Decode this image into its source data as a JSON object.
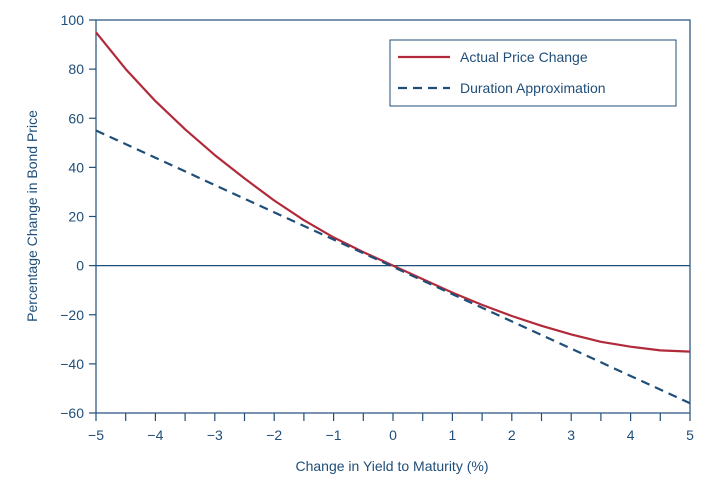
{
  "chart_data": {
    "type": "line",
    "xlabel": "Change in Yield to Maturity (%)",
    "ylabel": "Percentage Change in Bond Price",
    "xlim": [
      -5,
      5
    ],
    "ylim": [
      -60,
      100
    ],
    "xticks": [
      -5,
      -4,
      -3,
      -2,
      -1,
      0,
      1,
      2,
      3,
      4,
      5
    ],
    "xtick_labels": [
      "−5",
      "−4",
      "−3",
      "−2",
      "−1",
      "0",
      "1",
      "2",
      "3",
      "4",
      "5"
    ],
    "yticks": [
      -60,
      -40,
      -20,
      0,
      20,
      40,
      60,
      80,
      100
    ],
    "ytick_labels": [
      "−60",
      "−40",
      "−20",
      "0",
      "20",
      "40",
      "60",
      "80",
      "100"
    ],
    "x_minor_step": 0.5,
    "zero_line": true,
    "grid": false,
    "legend_position": "top-right",
    "series": [
      {
        "name": "Actual Price Change",
        "color": "#b22a3a",
        "style": "solid",
        "x": [
          -5,
          -4.5,
          -4,
          -3.5,
          -3,
          -2.5,
          -2,
          -1.5,
          -1,
          -0.5,
          0,
          0.5,
          1,
          1.5,
          2,
          2.5,
          3,
          3.5,
          4,
          4.5,
          5
        ],
        "y": [
          95,
          80,
          67,
          55.5,
          45,
          35.5,
          26.5,
          18.5,
          11.5,
          5.5,
          0,
          -5.5,
          -11,
          -16,
          -20.5,
          -24.5,
          -28,
          -31,
          -33,
          -34.5,
          -35
        ]
      },
      {
        "name": "Duration Approximation",
        "color": "#1f4e79",
        "style": "dashed",
        "x": [
          -5,
          5
        ],
        "y": [
          55,
          -56
        ]
      }
    ]
  }
}
